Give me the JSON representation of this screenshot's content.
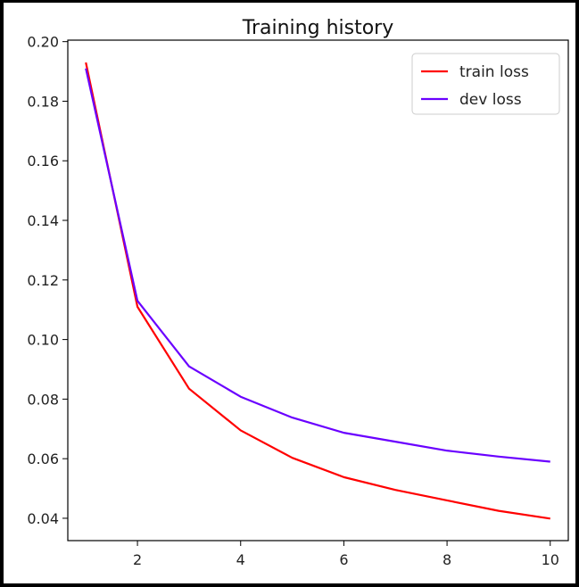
{
  "chart_data": {
    "type": "line",
    "title": "Training history",
    "xlabel": "",
    "ylabel": "",
    "xlim": [
      0.65,
      10.35
    ],
    "ylim": [
      0.0325,
      0.2005
    ],
    "x_ticks": [
      2,
      4,
      6,
      8,
      10
    ],
    "x_tick_labels": [
      "2",
      "4",
      "6",
      "8",
      "10"
    ],
    "y_ticks": [
      0.04,
      0.06,
      0.08,
      0.1,
      0.12,
      0.14,
      0.16,
      0.18,
      0.2
    ],
    "y_tick_labels": [
      "0.04",
      "0.06",
      "0.08",
      "0.10",
      "0.12",
      "0.14",
      "0.16",
      "0.18",
      "0.20"
    ],
    "grid": false,
    "legend_position": "top-right",
    "x": [
      1,
      2,
      3,
      4,
      5,
      6,
      7,
      8,
      9,
      10
    ],
    "series": [
      {
        "name": "train loss",
        "color": "#ff0000",
        "values": [
          0.193,
          0.111,
          0.0835,
          0.0695,
          0.0603,
          0.0538,
          0.0495,
          0.046,
          0.0425,
          0.0399
        ]
      },
      {
        "name": "dev loss",
        "color": "#6a00ff",
        "values": [
          0.191,
          0.113,
          0.091,
          0.0808,
          0.0738,
          0.0687,
          0.0657,
          0.0627,
          0.0607,
          0.059
        ]
      }
    ]
  }
}
